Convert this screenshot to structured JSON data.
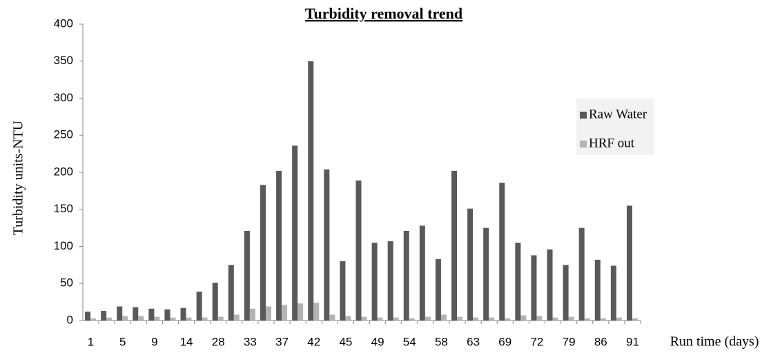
{
  "chart_data": {
    "type": "bar",
    "title": "Turbidity removal trend",
    "y_label": "Turbidity units-NTU",
    "x_label": "Run time (days)",
    "categories": [
      "1",
      null,
      "5",
      null,
      "9",
      null,
      "14",
      null,
      "28",
      null,
      "33",
      null,
      "37",
      null,
      "42",
      null,
      "45",
      null,
      "49",
      null,
      "54",
      null,
      "58",
      null,
      "63",
      null,
      "69",
      null,
      "72",
      null,
      "79",
      null,
      "86",
      null,
      "91"
    ],
    "series": [
      {
        "name": "Raw Water",
        "color": "#595959",
        "values": [
          12,
          13,
          19,
          18,
          16,
          15,
          17,
          39,
          51,
          75,
          121,
          183,
          202,
          236,
          350,
          204,
          80,
          189,
          105,
          107,
          121,
          128,
          83,
          202,
          151,
          125,
          186,
          105,
          88,
          96,
          75,
          125,
          82,
          74,
          155
        ]
      },
      {
        "name": "HRF out",
        "color": "#b3b3b3",
        "values": [
          3,
          4,
          6,
          6,
          5,
          4,
          4,
          4,
          5,
          8,
          16,
          19,
          21,
          23,
          24,
          8,
          6,
          5,
          4,
          4,
          3,
          5,
          8,
          5,
          4,
          4,
          3,
          7,
          6,
          4,
          5,
          3,
          3,
          4,
          3
        ]
      }
    ],
    "ylim": [
      0,
      400
    ],
    "yticks": [
      0,
      50,
      100,
      150,
      200,
      250,
      300,
      350,
      400
    ],
    "legend": "right"
  }
}
